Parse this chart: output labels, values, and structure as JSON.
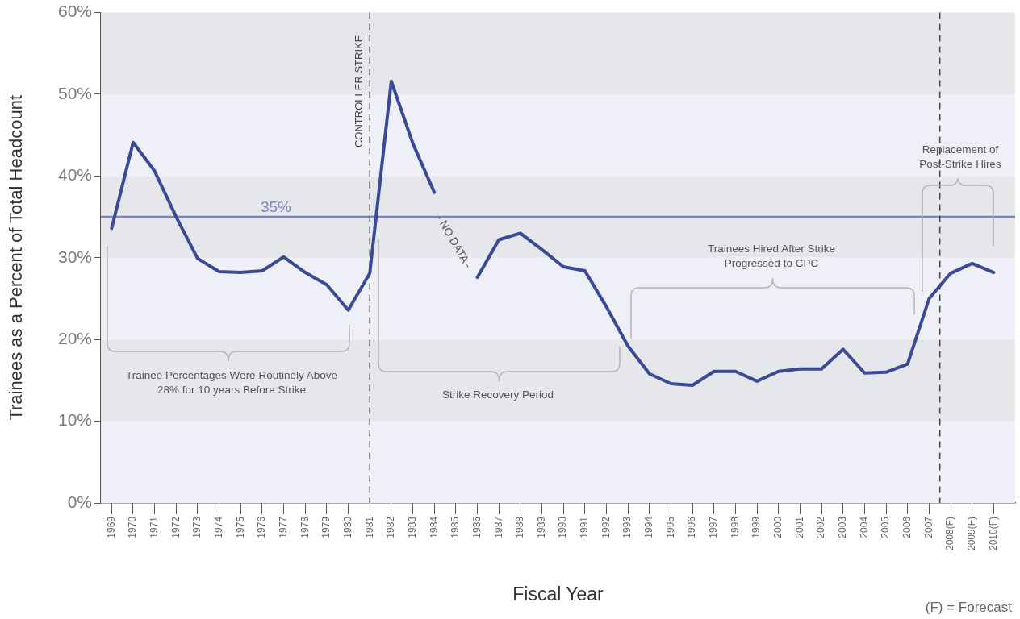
{
  "chart_data": {
    "type": "line",
    "xlabel": "Fiscal Year",
    "ylabel": "Trainees as a Percent of Total Headcount",
    "x": [
      1969,
      1970,
      1971,
      1972,
      1973,
      1974,
      1975,
      1976,
      1977,
      1978,
      1979,
      1980,
      1981,
      1982,
      1983,
      1984,
      1985,
      1986,
      1987,
      1988,
      1989,
      1990,
      1991,
      1992,
      1993,
      1994,
      1995,
      1996,
      1997,
      1998,
      1999,
      2000,
      2001,
      2002,
      2003,
      2004,
      2005,
      2006,
      2007,
      2008,
      2009,
      2010
    ],
    "series": [
      {
        "color": "#3a4a96",
        "values": [
          33.6,
          44.1,
          40.6,
          35.0,
          29.9,
          28.3,
          28.2,
          28.4,
          30.1,
          28.2,
          26.7,
          23.6,
          28.1,
          51.6,
          44.0,
          38.0,
          null,
          27.6,
          32.2,
          33.0,
          31.0,
          28.9,
          28.4,
          24.0,
          19.2,
          15.8,
          14.6,
          14.4,
          16.1,
          16.1,
          14.9,
          16.1,
          16.4,
          16.4,
          18.8,
          15.9,
          16.0,
          17.0,
          25.0,
          28.1,
          29.3,
          28.2
        ]
      }
    ],
    "xlim": [
      1968.5,
      2011
    ],
    "xticks": [
      1969,
      1970,
      1971,
      1972,
      1973,
      1974,
      1975,
      1976,
      1977,
      1978,
      1979,
      1980,
      1981,
      1982,
      1983,
      1984,
      1985,
      1986,
      1987,
      1988,
      1989,
      1990,
      1991,
      1992,
      1993,
      1994,
      1995,
      1996,
      1997,
      1998,
      1999,
      2000,
      2001,
      2002,
      2003,
      2004,
      2005,
      2006,
      2007,
      {
        "value": 2008,
        "label": "2008(F)"
      },
      {
        "value": 2009,
        "label": "2009(F)"
      },
      {
        "value": 2010,
        "label": "2010(F)"
      }
    ],
    "ylim": [
      0,
      60
    ],
    "yticks": [
      {
        "value": 0,
        "label": "0%"
      },
      {
        "value": 10,
        "label": "10%"
      },
      {
        "value": 20,
        "label": "20%"
      },
      {
        "value": 30,
        "label": "30%"
      },
      {
        "value": 40,
        "label": "40%"
      },
      {
        "value": 50,
        "label": "50%"
      },
      {
        "value": 60,
        "label": "60%"
      }
    ],
    "grid": false,
    "legend": false,
    "marker": "none",
    "line_style": "solid",
    "bands": [
      {
        "axis": "y",
        "from": 0,
        "to": 10,
        "color": "#eff0f7"
      },
      {
        "axis": "y",
        "from": 10,
        "to": 20,
        "color": "#e6e7ea"
      },
      {
        "axis": "y",
        "from": 20,
        "to": 30,
        "color": "#eff0f7"
      },
      {
        "axis": "y",
        "from": 30,
        "to": 40,
        "color": "#e6e7ea"
      },
      {
        "axis": "y",
        "from": 40,
        "to": 50,
        "color": "#eff0f7"
      },
      {
        "axis": "y",
        "from": 50,
        "to": 60,
        "color": "#e6e7ea"
      }
    ],
    "ref_lines": [
      {
        "axis": "y",
        "value": 35,
        "label": "35%",
        "color": "#7b84c4",
        "line_style": "solid"
      },
      {
        "axis": "x",
        "value": 1981,
        "label": "CONTROLLER STRIKE",
        "color": "#444444",
        "line_style": "dashed"
      },
      {
        "axis": "x",
        "value": 2007.5,
        "color": "#444444",
        "line_style": "dashed"
      }
    ],
    "annotations": [
      "Trainee Percentages Were Routinely Above 28% for 10 years Before Strike",
      "Strike Recovery Period",
      "Trainees Hired After Strike Progressed to CPC",
      "Replacement of Post-Strike Hires",
      "- NO DATA -",
      "(F) = Forecast"
    ]
  }
}
